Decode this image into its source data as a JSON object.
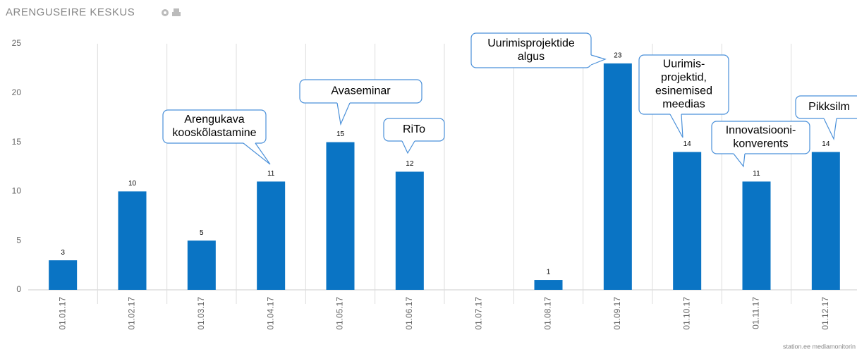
{
  "chart_data": {
    "type": "bar",
    "title": "ARENGUSEIRE KESKUS",
    "categories": [
      "01.01.17",
      "01.02.17",
      "01.03.17",
      "01.04.17",
      "01.05.17",
      "01.06.17",
      "01.07.17",
      "01.08.17",
      "01.09.17",
      "01.10.17",
      "01.11.17",
      "01.12.17"
    ],
    "values": [
      3,
      10,
      5,
      11,
      15,
      12,
      0,
      1,
      23,
      14,
      11,
      14
    ],
    "color": "#0a74c4",
    "ylim": [
      0,
      25
    ],
    "yticks": [
      0,
      5,
      10,
      15,
      20,
      25
    ],
    "grid": true,
    "annotations": [
      {
        "category": "01.04.17",
        "lines": [
          "Arengukava",
          "kooskõlastamine"
        ]
      },
      {
        "category": "01.05.17",
        "lines": [
          "Avaseminar"
        ]
      },
      {
        "category": "01.06.17",
        "lines": [
          "RiTo"
        ]
      },
      {
        "category": "01.09.17",
        "lines": [
          "Uurimisprojektide",
          "algus"
        ]
      },
      {
        "category": "01.10.17",
        "lines": [
          "Uurimis-",
          "projektid,",
          "esinemised",
          "meedias"
        ]
      },
      {
        "category": "01.11.17",
        "lines": [
          "Innovatsiooni-",
          "konverents"
        ]
      },
      {
        "category": "01.12.17",
        "lines": [
          "Pikksilm"
        ]
      }
    ],
    "credit": "station.ee mediamonitorin"
  }
}
